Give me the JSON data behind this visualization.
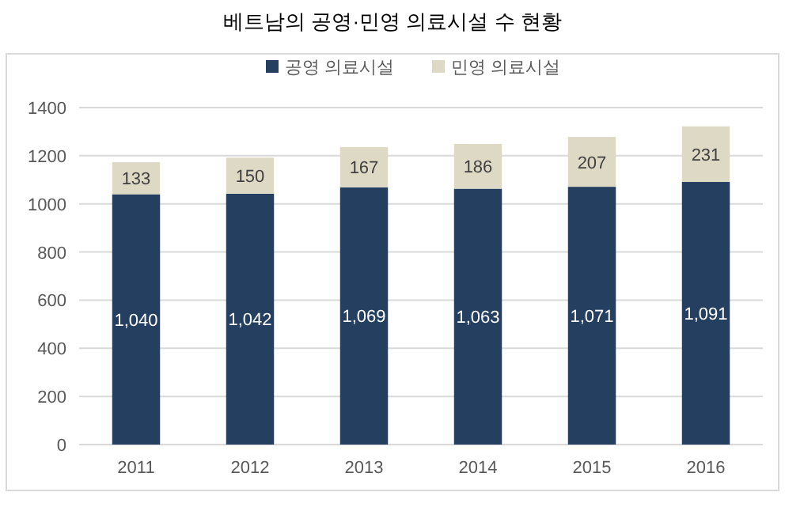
{
  "chart_data": {
    "type": "bar",
    "title": "베트남의 공영·민영 의료시설 수 현황",
    "categories": [
      "2011",
      "2012",
      "2013",
      "2014",
      "2015",
      "2016"
    ],
    "series": [
      {
        "name": "공영 의료시설",
        "color": "#243f60",
        "values": [
          1040,
          1042,
          1069,
          1063,
          1071,
          1091
        ],
        "value_labels": [
          "1,040",
          "1,042",
          "1,069",
          "1,063",
          "1,071",
          "1,091"
        ]
      },
      {
        "name": "민영 의료시설",
        "color": "#ddd9c4",
        "values": [
          133,
          150,
          167,
          186,
          207,
          231
        ],
        "value_labels": [
          "133",
          "150",
          "167",
          "186",
          "207",
          "231"
        ]
      }
    ],
    "stacked": true,
    "ylim": [
      0,
      1400
    ],
    "yticks": [
      0,
      200,
      400,
      600,
      800,
      1000,
      1200,
      1400
    ],
    "grid": "y",
    "legend": "top"
  }
}
